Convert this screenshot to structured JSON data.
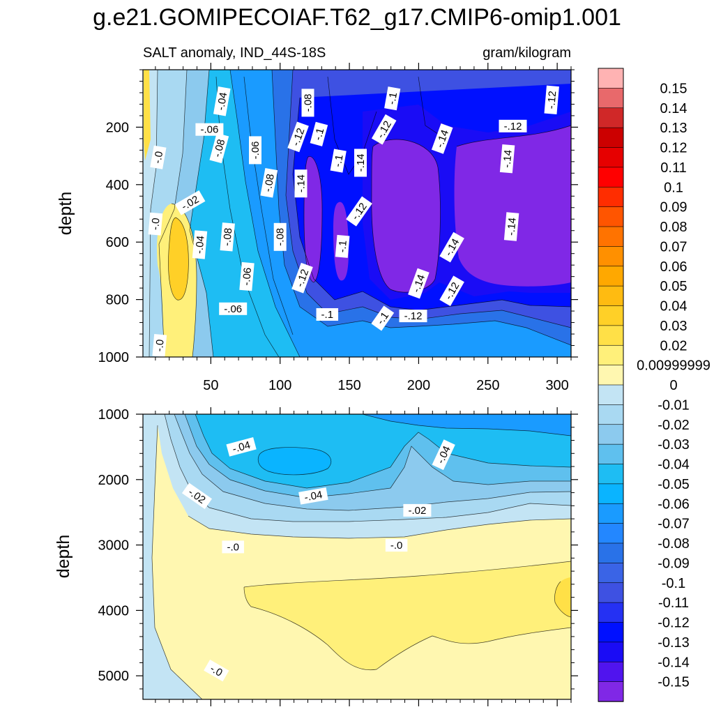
{
  "chart_data": {
    "type": "contour",
    "title": "g.e21.GOMIPECOIAF.T62_g17.CMIP6-omip1.001",
    "subtitle_left": "SALT anomaly, IND_44S-18S",
    "subtitle_right": "gram/kilogram",
    "panels": [
      {
        "name": "upper",
        "ylabel": "depth",
        "ylim": [
          0,
          1000
        ],
        "yticks": [
          200,
          400,
          600,
          800,
          1000
        ],
        "xlim": [
          1,
          310
        ],
        "xticks": [
          50,
          100,
          150,
          200,
          250,
          300
        ],
        "contour_labels": [
          {
            "text": "-.04",
            "x": 58,
            "y": 110,
            "angle": -80
          },
          {
            "text": "-.08",
            "x": 120,
            "y": 115,
            "angle": -90
          },
          {
            "text": "-.1",
            "x": 181,
            "y": 100,
            "angle": -80
          },
          {
            "text": "-.12",
            "x": 296,
            "y": 105,
            "angle": -85
          },
          {
            "text": "-.06",
            "x": 49,
            "y": 208,
            "angle": 0
          },
          {
            "text": "-.1",
            "x": 128,
            "y": 224,
            "angle": -75
          },
          {
            "text": "-.12",
            "x": 175,
            "y": 208,
            "angle": -60
          },
          {
            "text": "-.12",
            "x": 268,
            "y": 196,
            "angle": 0
          },
          {
            "text": "-.12",
            "x": 113,
            "y": 234,
            "angle": -70
          },
          {
            "text": "-.14",
            "x": 217,
            "y": 240,
            "angle": -70
          },
          {
            "text": "-.08",
            "x": 56,
            "y": 273,
            "angle": -75
          },
          {
            "text": "-.06",
            "x": 82,
            "y": 280,
            "angle": -90
          },
          {
            "text": "-.1",
            "x": 142,
            "y": 317,
            "angle": -80
          },
          {
            "text": "-.14",
            "x": 158,
            "y": 324,
            "angle": -90
          },
          {
            "text": "-.14",
            "x": 264,
            "y": 310,
            "angle": -85
          },
          {
            "text": "-.0",
            "x": 12,
            "y": 305,
            "angle": -80
          },
          {
            "text": "-.08",
            "x": 92,
            "y": 394,
            "angle": -80
          },
          {
            "text": "-.14",
            "x": 115,
            "y": 396,
            "angle": -90
          },
          {
            "text": "-.02",
            "x": 35,
            "y": 463,
            "angle": -30
          },
          {
            "text": "-.12",
            "x": 157,
            "y": 493,
            "angle": -55
          },
          {
            "text": "-.0",
            "x": 10,
            "y": 537,
            "angle": -85
          },
          {
            "text": "-.08",
            "x": 62,
            "y": 582,
            "angle": -85
          },
          {
            "text": "-.08",
            "x": 100,
            "y": 582,
            "angle": -90
          },
          {
            "text": "-.14",
            "x": 267,
            "y": 546,
            "angle": -85
          },
          {
            "text": "-.04",
            "x": 42,
            "y": 609,
            "angle": -85
          },
          {
            "text": "-.1",
            "x": 145,
            "y": 615,
            "angle": -85
          },
          {
            "text": "-.14",
            "x": 224,
            "y": 618,
            "angle": -60
          },
          {
            "text": "-.06",
            "x": 76,
            "y": 720,
            "angle": -85
          },
          {
            "text": "-.12",
            "x": 116,
            "y": 725,
            "angle": -70
          },
          {
            "text": "-.14",
            "x": 200,
            "y": 744,
            "angle": -70
          },
          {
            "text": "-.12",
            "x": 224,
            "y": 770,
            "angle": -60
          },
          {
            "text": "-.06",
            "x": 66,
            "y": 832,
            "angle": 0
          },
          {
            "text": "-.1",
            "x": 134,
            "y": 852,
            "angle": 0
          },
          {
            "text": "-.12",
            "x": 196,
            "y": 857,
            "angle": 0
          },
          {
            "text": "-.1",
            "x": 174,
            "y": 865,
            "angle": -55
          },
          {
            "text": "-.0",
            "x": 13,
            "y": 960,
            "angle": -85
          }
        ]
      },
      {
        "name": "lower",
        "ylabel": "depth",
        "ylim": [
          1000,
          5360
        ],
        "yticks": [
          1000,
          2000,
          3000,
          4000,
          5000
        ],
        "xlim": [
          1,
          310
        ],
        "contour_labels": [
          {
            "text": "-.04",
            "x": 72,
            "y": 1500,
            "angle": -15
          },
          {
            "text": "-.04",
            "x": 218,
            "y": 1620,
            "angle": -65
          },
          {
            "text": "-.02",
            "x": 40,
            "y": 2250,
            "angle": 35
          },
          {
            "text": "-.04",
            "x": 124,
            "y": 2250,
            "angle": -10
          },
          {
            "text": "-.02",
            "x": 199,
            "y": 2470,
            "angle": 0
          },
          {
            "text": "-.0",
            "x": 66,
            "y": 3030,
            "angle": 0
          },
          {
            "text": "-.0",
            "x": 184,
            "y": 3005,
            "angle": 0
          },
          {
            "text": "-.0",
            "x": 54,
            "y": 4920,
            "angle": 30
          }
        ]
      }
    ],
    "colorbar": {
      "levels": [
        "0.15",
        "0.14",
        "0.13",
        "0.12",
        "0.11",
        "0.1",
        "0.09",
        "0.08",
        "0.07",
        "0.06",
        "0.05",
        "0.04",
        "0.03",
        "0.02",
        "0.00999999",
        "0",
        "-0.01",
        "-0.02",
        "-0.03",
        "-0.04",
        "-0.05",
        "-0.06",
        "-0.07",
        "-0.08",
        "-0.09",
        "-0.1",
        "-0.11",
        "-0.12",
        "-0.13",
        "-0.14",
        "-0.15"
      ],
      "colors": [
        "#ffb3b3",
        "#e8696b",
        "#d02828",
        "#cc0000",
        "#e60000",
        "#ff0000",
        "#ff2d00",
        "#ff5500",
        "#ff7300",
        "#ff9000",
        "#ffa800",
        "#ffbb11",
        "#ffd027",
        "#ffe047",
        "#fff07a",
        "#fff7b0",
        "#c3e4f4",
        "#a9d9f2",
        "#8ccaee",
        "#5fc0ee",
        "#1ebdf3",
        "#0ab4ff",
        "#1a9bff",
        "#2387ff",
        "#2972e8",
        "#3a64e6",
        "#3e51e2",
        "#2531f3",
        "#0010ff",
        "#1a0cf5",
        "#5014ee",
        "#8028e6"
      ]
    },
    "colors": {
      "yellow0": "#fff7b0",
      "yellow1": "#fff07a",
      "yellow2": "#ffe047",
      "yellow3": "#ffd027",
      "b01": "#c3e4f4",
      "b02": "#a9d9f2",
      "b03": "#8ccaee",
      "b04": "#5fc0ee",
      "b05": "#1ebdf3",
      "b06": "#0ab4ff",
      "b07": "#1a9bff",
      "b08": "#2387ff",
      "b09": "#2972e8",
      "b10": "#3a64e6",
      "b11": "#3e51e2",
      "b12": "#2531f3",
      "b13": "#0010ff",
      "b14": "#1a0cf5",
      "b15": "#8028e6"
    }
  }
}
